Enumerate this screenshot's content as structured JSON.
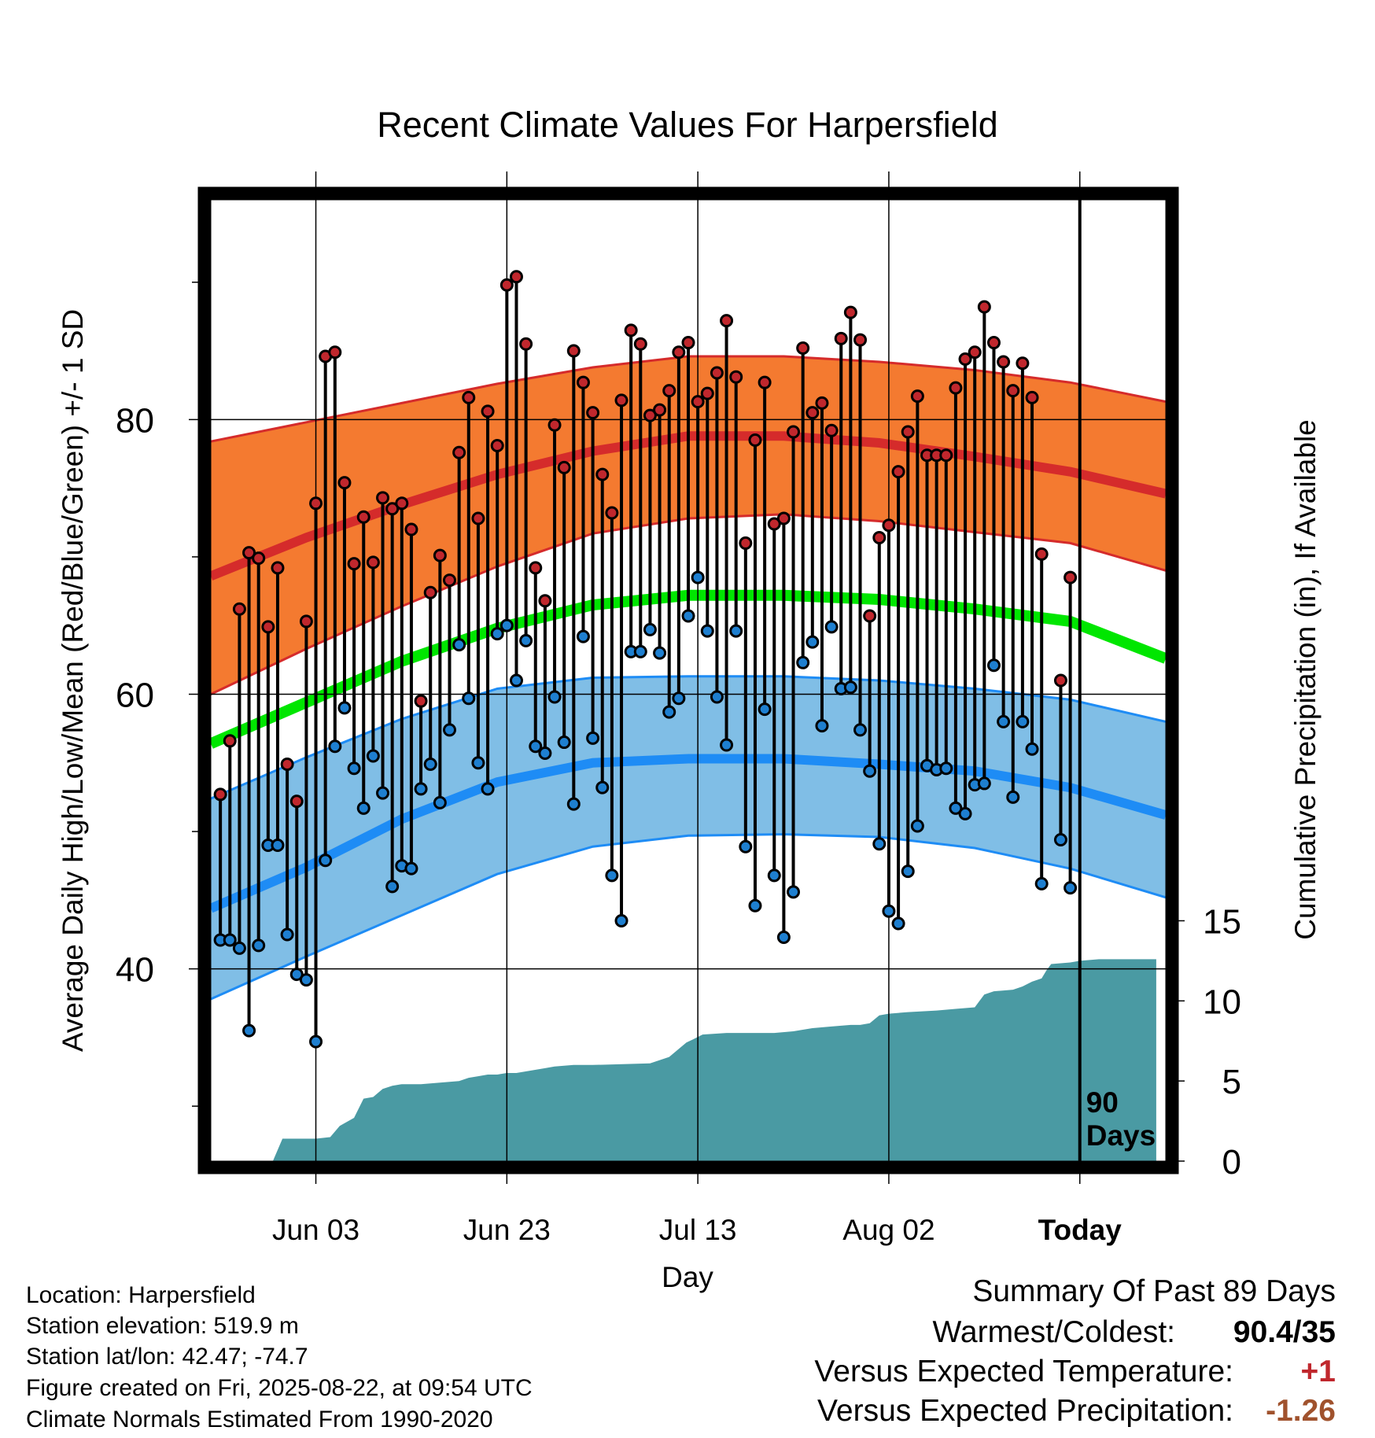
{
  "chart_data": {
    "type": "line",
    "title": "Recent Climate Values For Harpersfield",
    "xlabel": "Day",
    "ylabel": "Average Daily High/Low/Mean (Red/Blue/Green) +/- 1 SD",
    "y2label": "Cumulative Precipitation (in), If Available",
    "x_tick_labels": [
      "Jun 03",
      "Jun 23",
      "Jul 13",
      "Aug 02",
      "Today"
    ],
    "x_tick_days": [
      10,
      30,
      50,
      70,
      90
    ],
    "x_range": [
      -1,
      99
    ],
    "ylim": [
      26,
      96
    ],
    "y_ticks": [
      40,
      60,
      80
    ],
    "y_minor_ticks": [
      30,
      50,
      70,
      90
    ],
    "y2lim": [
      0,
      60
    ],
    "y2_ticks": [
      0,
      5,
      10,
      15
    ],
    "today_annotation": [
      "90",
      "Days"
    ],
    "colors": {
      "high_band": "#f47a30",
      "high_line": "#d52b2b",
      "high_edge": "#d52b2b",
      "low_band": "#80bee6",
      "low_line": "#1e8cf5",
      "low_edge": "#1e8cf5",
      "mean_line": "#00e600",
      "precip": "#4a9aa3",
      "dot_high": "#c0272d",
      "dot_low": "#1e7fd0"
    },
    "normals": {
      "days": [
        -1,
        9,
        19,
        29,
        39,
        49,
        59,
        69,
        79,
        89,
        99
      ],
      "high_mean": [
        68.6,
        71.4,
        73.8,
        76,
        77.7,
        78.8,
        78.8,
        78.3,
        77.3,
        76.2,
        74.6
      ],
      "high_upper": [
        78.4,
        79.8,
        81.2,
        82.6,
        83.8,
        84.6,
        84.6,
        84.2,
        83.6,
        82.7,
        81.3
      ],
      "high_lower": [
        60,
        63.3,
        66.4,
        69.3,
        71.7,
        72.8,
        73.1,
        72.6,
        71.8,
        71,
        69
      ],
      "mean": [
        56.4,
        59.4,
        62.4,
        64.8,
        66.5,
        67.2,
        67.2,
        66.9,
        66.2,
        65.3,
        62.6
      ],
      "low_mean": [
        44.4,
        47.4,
        50.9,
        53.6,
        55,
        55.3,
        55.3,
        54.9,
        54.4,
        53.2,
        51.2
      ],
      "low_upper": [
        52.4,
        55.4,
        58.2,
        60.4,
        61.2,
        61.3,
        61.3,
        61,
        60.4,
        59.6,
        58
      ],
      "low_lower": [
        37.8,
        40.9,
        43.9,
        46.9,
        48.9,
        49.7,
        49.8,
        49.6,
        48.8,
        47.3,
        45.2
      ]
    },
    "daily_high": [
      52.7,
      56.6,
      66.2,
      70.3,
      69.9,
      64.9,
      69.2,
      54.9,
      52.2,
      65.3,
      73.9,
      84.6,
      84.9,
      75.4,
      69.5,
      72.9,
      69.6,
      74.3,
      73.5,
      73.9,
      72.0,
      59.5,
      67.4,
      70.1,
      68.3,
      77.6,
      81.6,
      72.8,
      80.6,
      78.1,
      89.8,
      90.4,
      85.5,
      69.2,
      66.8,
      79.6,
      76.5,
      85.0,
      82.7,
      80.5,
      76.0,
      73.2,
      81.4,
      86.5,
      85.5,
      80.3,
      80.7,
      82.1,
      84.9,
      85.6,
      81.3,
      81.9,
      83.4,
      87.2,
      83.1,
      71.0,
      78.5,
      82.7,
      72.4,
      72.8,
      79.1,
      85.2,
      80.5,
      81.2,
      79.2,
      85.9,
      87.8,
      85.8,
      65.7,
      71.4,
      72.3,
      76.2,
      79.1,
      81.7,
      77.4,
      77.4,
      77.4,
      82.3,
      84.4,
      84.9,
      88.2,
      85.6,
      84.2,
      82.1,
      84.1,
      81.6,
      70.2,
      null,
      61.0,
      68.5
    ],
    "daily_low": [
      42.1,
      42.1,
      41.5,
      35.5,
      41.7,
      49.0,
      49.0,
      42.5,
      39.6,
      39.2,
      34.7,
      47.9,
      56.2,
      59.0,
      54.6,
      51.7,
      55.5,
      52.8,
      46.0,
      47.5,
      47.3,
      53.1,
      54.9,
      52.1,
      57.4,
      63.6,
      59.7,
      55.0,
      53.1,
      64.4,
      65.0,
      61.0,
      63.9,
      56.2,
      55.7,
      59.8,
      56.5,
      52.0,
      64.2,
      56.8,
      53.2,
      46.8,
      43.5,
      63.1,
      63.1,
      64.7,
      63.0,
      58.7,
      59.7,
      65.7,
      68.5,
      64.6,
      59.8,
      56.3,
      64.6,
      48.9,
      44.6,
      58.9,
      46.8,
      42.3,
      45.6,
      62.3,
      63.8,
      57.7,
      64.9,
      60.4,
      60.5,
      57.4,
      54.4,
      49.1,
      44.2,
      43.3,
      47.1,
      50.4,
      54.8,
      54.5,
      54.6,
      51.7,
      51.3,
      53.4,
      53.5,
      62.1,
      58.0,
      52.5,
      58.0,
      56.0,
      46.2,
      null,
      49.4,
      45.9
    ],
    "cumulative_precip": {
      "days": [
        5.5,
        6.5,
        10,
        11.5,
        12.5,
        14,
        15,
        16,
        17,
        18,
        19,
        20,
        21,
        23,
        25,
        26,
        27,
        28,
        29,
        30,
        31,
        34,
        35,
        37,
        39,
        45,
        47,
        48,
        48.8,
        49.5,
        50.5,
        53,
        58,
        60,
        62,
        64,
        66,
        67,
        68,
        69,
        70,
        72,
        75,
        77,
        79,
        79.5,
        80,
        81,
        83,
        84,
        85,
        86,
        86.5,
        87,
        89,
        90,
        92,
        95,
        98
      ],
      "values": [
        0,
        1.4,
        1.4,
        1.5,
        2.2,
        2.7,
        3.9,
        4.0,
        4.5,
        4.7,
        4.8,
        4.8,
        4.8,
        4.9,
        5.0,
        5.2,
        5.3,
        5.4,
        5.4,
        5.5,
        5.5,
        5.8,
        5.9,
        6.0,
        6.0,
        6.1,
        6.5,
        7.0,
        7.4,
        7.6,
        7.9,
        8.0,
        8.0,
        8.1,
        8.3,
        8.4,
        8.5,
        8.5,
        8.6,
        9.1,
        9.2,
        9.3,
        9.4,
        9.5,
        9.6,
        10.0,
        10.4,
        10.6,
        10.7,
        10.9,
        11.2,
        11.4,
        11.9,
        12.3,
        12.4,
        12.5,
        12.6,
        12.6,
        12.6
      ]
    }
  },
  "info": {
    "location": "Location: Harpersfield",
    "elevation": "Station elevation: 519.9 m",
    "latlon": "Station lat/lon: 42.47; -74.7",
    "created": "Figure created on Fri, 2025-08-22, at 09:54 UTC",
    "normals": "Climate Normals Estimated From 1990-2020"
  },
  "summary": {
    "title": "Summary Of Past 89 Days",
    "warmest_label": "Warmest/Coldest:",
    "warmest_value": "90.4/35",
    "temp_label": "Versus Expected Temperature:",
    "temp_value": "+1",
    "temp_color": "#c0272d",
    "precip_label": "Versus Expected Precipitation:",
    "precip_value": "-1.26",
    "precip_color": "#a0522d"
  }
}
